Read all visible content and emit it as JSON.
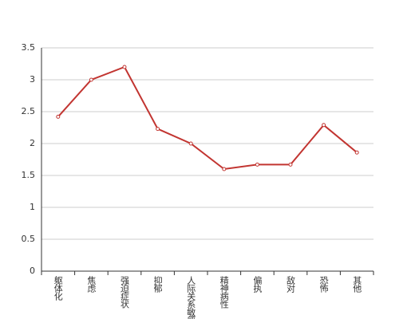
{
  "chart_data": {
    "type": "line",
    "categories": [
      "躯体化",
      "焦虑",
      "强迫症状",
      "抑郁",
      "人际关系敏感",
      "精神病性",
      "偏执",
      "敌对",
      "恐怖",
      "其他"
    ],
    "series": [
      {
        "color": "#c23531",
        "values": [
          2.42,
          3.0,
          3.2,
          2.23,
          2.0,
          1.6,
          1.67,
          1.67,
          2.29,
          1.86
        ]
      }
    ],
    "ylim": [
      0,
      3.5
    ],
    "yticks": [
      0,
      0.5,
      1,
      1.5,
      2,
      2.5,
      3,
      3.5
    ],
    "grid": true
  }
}
